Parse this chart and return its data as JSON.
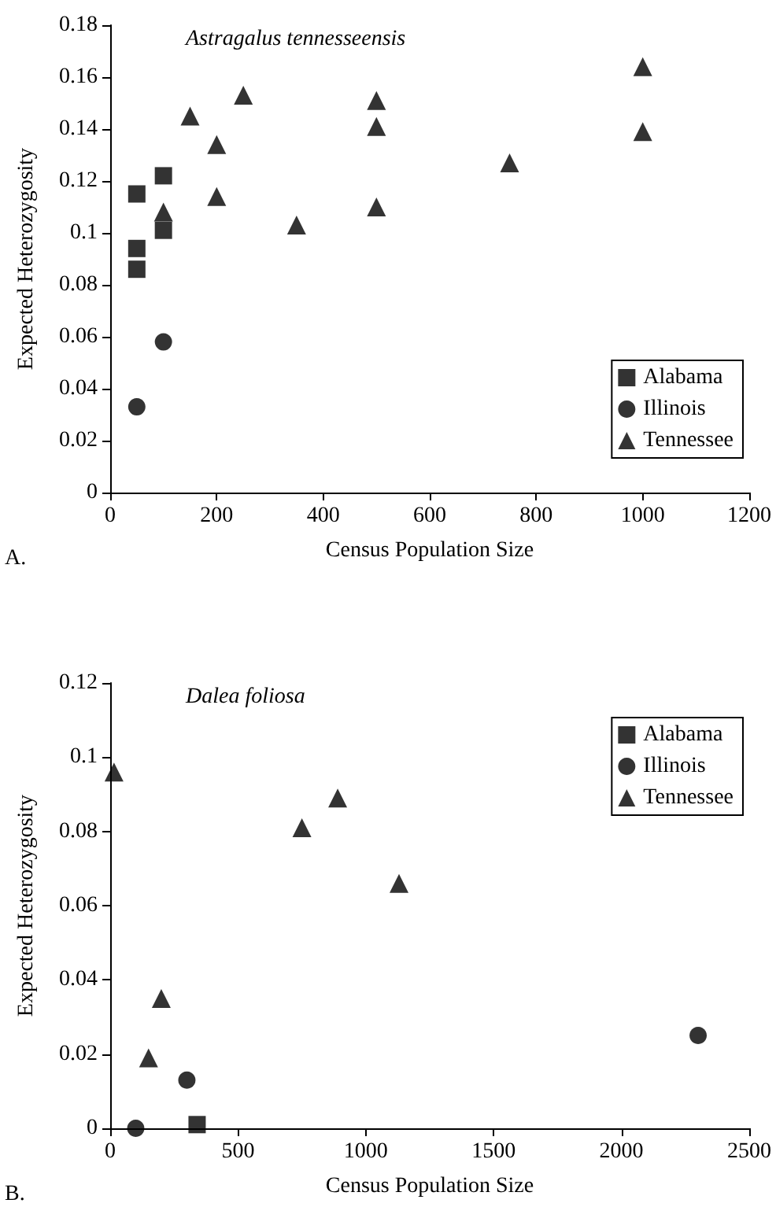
{
  "chart_data": [
    {
      "type": "scatter",
      "xlabel": "Census Population Size",
      "ylabel": "Expected Heterozygosity",
      "annotations": [
        "Astragalus tennesseensis",
        "A."
      ],
      "xlim": [
        0,
        1200
      ],
      "xticks": [
        0,
        200,
        400,
        600,
        800,
        1000,
        1200
      ],
      "ylim": [
        0,
        0.18
      ],
      "yticks": [
        0,
        0.02,
        0.04,
        0.06,
        0.08,
        0.1,
        0.12,
        0.14,
        0.16,
        0.18
      ],
      "grid": false,
      "legend": "bottom right",
      "series": [
        {
          "name": "Alabama",
          "color": "#000000",
          "marker": "square",
          "x": [
            50,
            50,
            50,
            100,
            100
          ],
          "values": [
            0.115,
            0.094,
            0.086,
            0.122,
            0.101
          ]
        },
        {
          "name": "Illinois",
          "color": "#000000",
          "marker": "circle",
          "x": [
            50,
            100
          ],
          "values": [
            0.033,
            0.058
          ]
        },
        {
          "name": "Tennessee",
          "color": "#000000",
          "marker": "triangle",
          "x": [
            100,
            150,
            200,
            200,
            250,
            350,
            500,
            500,
            500,
            750,
            1000,
            1000
          ],
          "values": [
            0.108,
            0.145,
            0.134,
            0.114,
            0.153,
            0.103,
            0.151,
            0.141,
            0.11,
            0.127,
            0.164,
            0.139
          ]
        }
      ]
    },
    {
      "type": "scatter",
      "xlabel": "Census Population Size",
      "ylabel": "Expected Heterozygosity",
      "annotations": [
        "Dalea foliosa",
        "B."
      ],
      "xlim": [
        0,
        2500
      ],
      "xticks": [
        0,
        500,
        1000,
        1500,
        2000,
        2500
      ],
      "ylim": [
        0,
        0.12
      ],
      "yticks": [
        0,
        0.02,
        0.04,
        0.06,
        0.08,
        0.1,
        0.12
      ],
      "grid": false,
      "legend": "top right",
      "series": [
        {
          "name": "Alabama",
          "color": "#000000",
          "marker": "square",
          "x": [
            340
          ],
          "values": [
            0.001
          ]
        },
        {
          "name": "Illinois",
          "color": "#000000",
          "marker": "circle",
          "x": [
            100,
            300,
            2300
          ],
          "values": [
            0,
            0.013,
            0.025
          ]
        },
        {
          "name": "Tennessee",
          "color": "#000000",
          "marker": "triangle",
          "x": [
            15,
            150,
            200,
            750,
            890,
            1130
          ],
          "values": [
            0.096,
            0.019,
            0.035,
            0.081,
            0.089,
            0.066
          ]
        }
      ]
    }
  ]
}
